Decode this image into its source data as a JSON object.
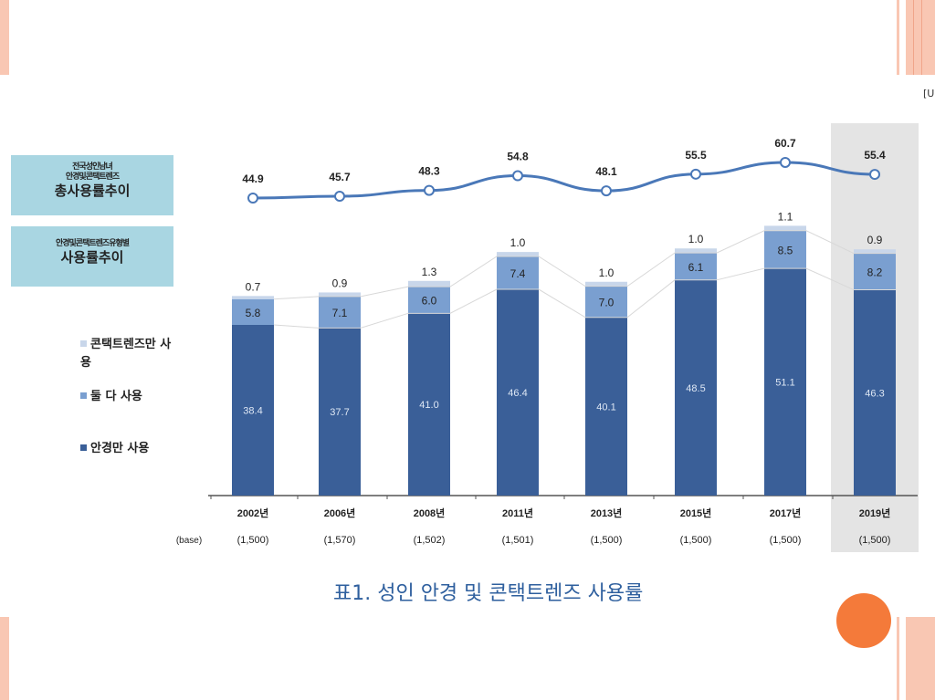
{
  "side_labels": {
    "total_small": [
      "전국성인남녀",
      "안경및콘택트렌즈"
    ],
    "total_big": "총사용률추이",
    "type_small": "안경및콘택트렌즈유형별",
    "type_big": "사용률추이"
  },
  "legend": [
    {
      "label": "콘택트렌즈만 사용",
      "color": "#c8d6ea"
    },
    {
      "label": "둘 다 사용",
      "color": "#7a9fd0"
    },
    {
      "label": "안경만 사용",
      "color": "#3a5f98"
    }
  ],
  "unit_label": "[U",
  "caption": "표1. 성인 안경 및 콘택트렌즈 사용률",
  "chart_data": {
    "type": "bar",
    "stacked": true,
    "title": "표1. 성인 안경 및 콘택트렌즈 사용률",
    "categories": [
      "2002년",
      "2006년",
      "2008년",
      "2011년",
      "2013년",
      "2015년",
      "2017년",
      "2019년"
    ],
    "base_label": "(base)",
    "bases": [
      "(1,500)",
      "(1,570)",
      "(1,502)",
      "(1,501)",
      "(1,500)",
      "(1,500)",
      "(1,500)",
      "(1,500)"
    ],
    "series": [
      {
        "name": "안경만 사용",
        "values": [
          38.4,
          37.7,
          41.0,
          46.4,
          40.1,
          48.5,
          51.1,
          46.3
        ],
        "color": "#3a5f98"
      },
      {
        "name": "둘 다 사용",
        "values": [
          5.8,
          7.1,
          6.0,
          7.4,
          7.0,
          6.1,
          8.5,
          8.2
        ],
        "color": "#7a9fd0"
      },
      {
        "name": "콘택트렌즈만 사용",
        "values": [
          0.7,
          0.9,
          1.3,
          1.0,
          1.0,
          1.0,
          1.1,
          0.9
        ],
        "color": "#c8d6ea"
      }
    ],
    "line": {
      "name": "총사용률추이",
      "values": [
        44.9,
        45.7,
        48.3,
        54.8,
        48.1,
        55.5,
        60.7,
        55.4
      ],
      "color": "#4a78b8"
    },
    "highlight_category": "2019년"
  }
}
